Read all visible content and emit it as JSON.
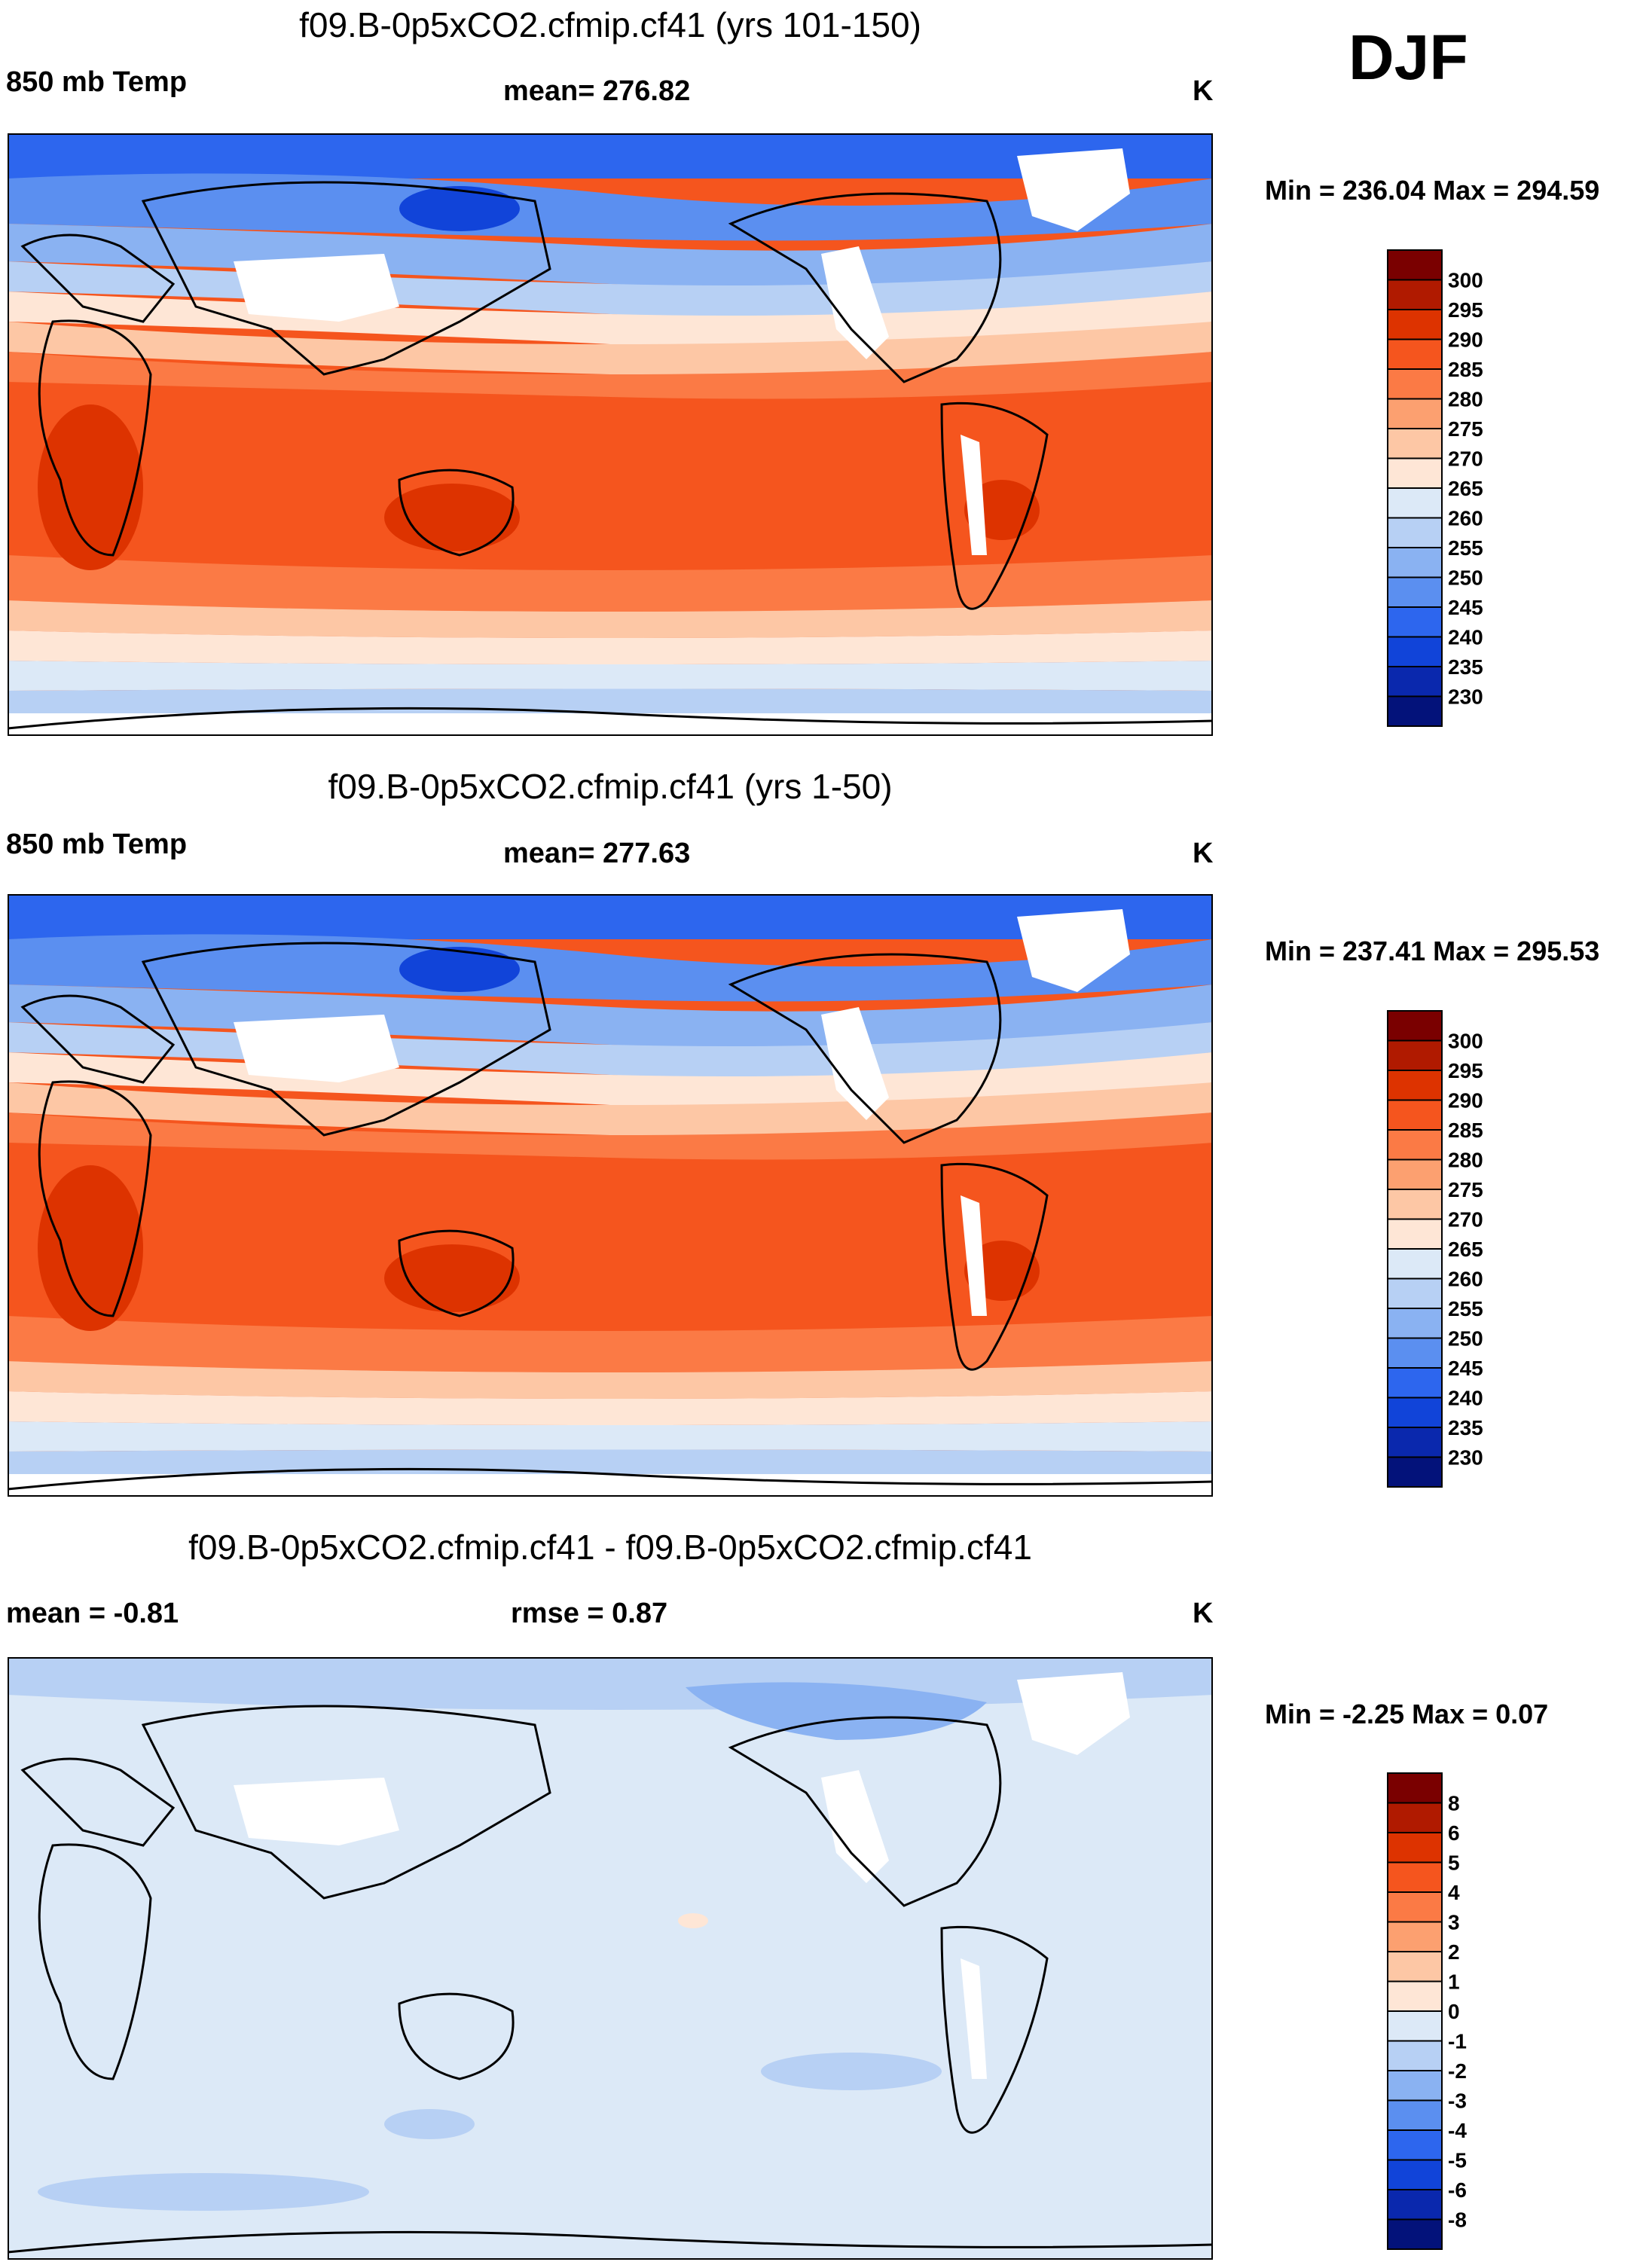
{
  "season": "DJF",
  "palette": {
    "warm": [
      "#7a0000",
      "#b01a00",
      "#dd3300",
      "#f5551e",
      "#fb7a45",
      "#fca070",
      "#fdc7a5",
      "#fee6d6"
    ],
    "cool": [
      "#dce9f7",
      "#b7d0f4",
      "#8ab2f2",
      "#5b8ff0",
      "#2d66ee",
      "#1144d9",
      "#0a28ad",
      "#03127a"
    ],
    "land_contour": "#000000"
  },
  "panels": [
    {
      "title": "f09.B-0p5xCO2.cfmip.cf41 (yrs 101-150)",
      "left_label": "850 mb Temp",
      "center_label": "mean= 276.82",
      "units": "K",
      "minmax": "Min = 236.04 Max = 294.59",
      "colorbar_ticks": [
        "300",
        "295",
        "290",
        "285",
        "280",
        "275",
        "270",
        "265",
        "260",
        "255",
        "250",
        "245",
        "240",
        "235",
        "230"
      ],
      "kind": "abs"
    },
    {
      "title": "f09.B-0p5xCO2.cfmip.cf41 (yrs 1-50)",
      "left_label": "850 mb Temp",
      "center_label": "mean= 277.63",
      "units": "K",
      "minmax": "Min = 237.41 Max = 295.53",
      "colorbar_ticks": [
        "300",
        "295",
        "290",
        "285",
        "280",
        "275",
        "270",
        "265",
        "260",
        "255",
        "250",
        "245",
        "240",
        "235",
        "230"
      ],
      "kind": "abs"
    },
    {
      "title": "f09.B-0p5xCO2.cfmip.cf41 - f09.B-0p5xCO2.cfmip.cf41",
      "left_label": "mean =  -0.81",
      "center_label": "rmse =   0.87",
      "units": "K",
      "minmax": "Min =  -2.25 Max =   0.07",
      "colorbar_ticks": [
        "8",
        "6",
        "5",
        "4",
        "3",
        "2",
        "1",
        "0",
        "-1",
        "-2",
        "-3",
        "-4",
        "-5",
        "-6",
        "-8"
      ],
      "kind": "diff"
    }
  ]
}
